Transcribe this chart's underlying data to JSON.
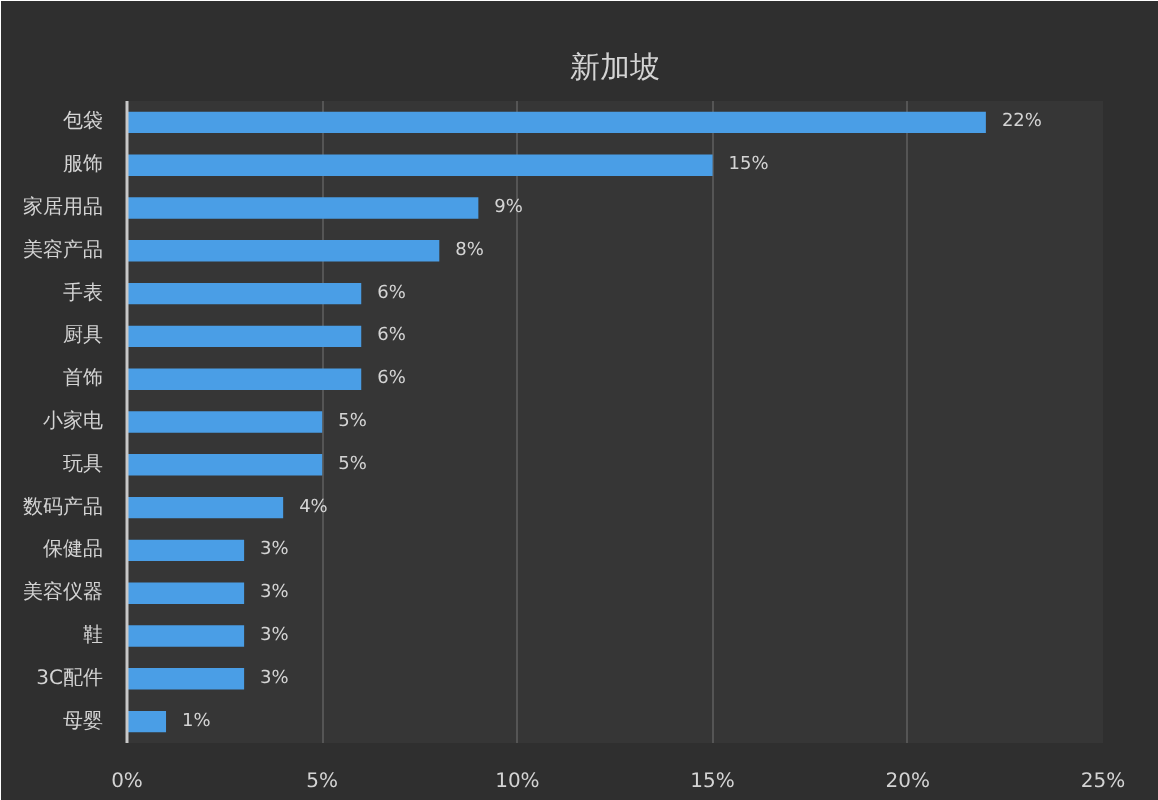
{
  "chart_data": {
    "type": "bar",
    "orientation": "horizontal",
    "title": "新加坡",
    "categories": [
      "包袋",
      "服饰",
      "家居用品",
      "美容产品",
      "手表",
      "厨具",
      "首饰",
      "小家电",
      "玩具",
      "数码产品",
      "保健品",
      "美容仪器",
      "鞋",
      "3C配件",
      "母婴"
    ],
    "values": [
      22,
      15,
      9,
      8,
      6,
      6,
      6,
      5,
      5,
      4,
      3,
      3,
      3,
      3,
      1
    ],
    "value_labels": [
      "22%",
      "15%",
      "9%",
      "8%",
      "6%",
      "6%",
      "6%",
      "5%",
      "5%",
      "4%",
      "3%",
      "3%",
      "3%",
      "3%",
      "1%"
    ],
    "color": "#4a9ee6",
    "xlim": [
      0,
      25
    ],
    "xticks": [
      {
        "value": 0,
        "label": "0%"
      },
      {
        "value": 5,
        "label": "5%"
      },
      {
        "value": 10,
        "label": "10%"
      },
      {
        "value": 15,
        "label": "15%"
      },
      {
        "value": 20,
        "label": "20%"
      },
      {
        "value": 25,
        "label": "25%"
      }
    ],
    "grid": "x"
  }
}
